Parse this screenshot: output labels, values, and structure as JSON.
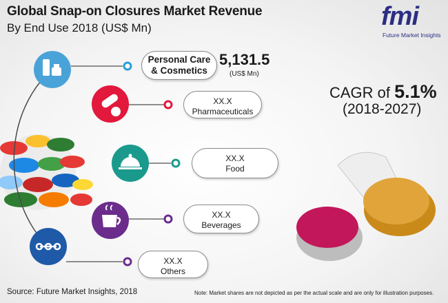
{
  "header": {
    "title": "Global Snap-on Closures Market Revenue",
    "subtitle": "By End Use 2018 (US$ Mn)"
  },
  "logo": {
    "text": "fmi",
    "sub": "Future Market Insights"
  },
  "chart_data": {
    "type": "table",
    "title": "Global Snap-on Closures Market Revenue",
    "subtitle": "By End Use 2018 (US$ Mn)",
    "categories": [
      "Personal Care & Cosmetics",
      "Pharmaceuticals",
      "Food",
      "Beverages",
      "Others"
    ],
    "values": [
      "5,131.5",
      "XX.X",
      "XX.X",
      "XX.X",
      "XX.X"
    ],
    "unit": "(US$ Mn)",
    "icons": [
      "cosmetics-icon",
      "pills-icon",
      "food-cloche-icon",
      "cup-icon",
      "chain-link-icon"
    ],
    "colors": {
      "segment_1": "#4aa3d8",
      "segment_2": "#e2183c",
      "segment_3": "#1a9a8c",
      "segment_4": "#6b2c8c",
      "segment_5": "#1f5aa8"
    }
  },
  "categories": {
    "pc_line1": "Personal Care",
    "pc_line2": "& Cosmetics",
    "pc_value": "5,131.5",
    "pc_unit": "(US$ Mn)",
    "ph_value": "XX.X",
    "ph_label": "Pharmaceuticals",
    "fd_value": "XX.X",
    "fd_label": "Food",
    "bv_value": "XX.X",
    "bv_label": "Beverages",
    "ot_value": "XX.X",
    "ot_label": "Others"
  },
  "cagr": {
    "label": "CAGR of ",
    "value": "5.1%",
    "period": "(2018-2027)"
  },
  "footer": {
    "source": "Source: Future Market Insights, 2018",
    "note": "Note: Market shares are not depicted as per the actual scale and are only for illustration purposes."
  }
}
